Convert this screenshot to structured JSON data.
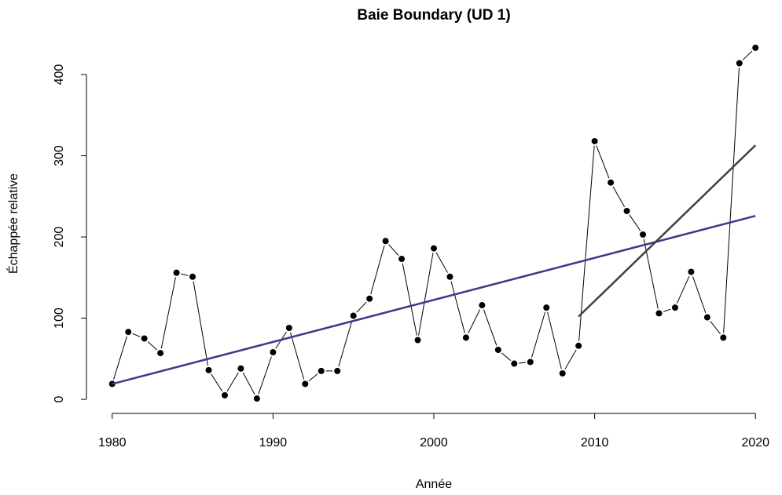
{
  "chart_data": {
    "type": "line",
    "title": "Baie Boundary (UD 1)",
    "x_label": "Année",
    "y_label": "Échappée relative",
    "xlim": [
      1978.4,
      2021.6
    ],
    "ylim": [
      -17.3,
      450.3
    ],
    "xticks": [
      1980,
      1990,
      2000,
      2010,
      2020
    ],
    "yticks": [
      0,
      100,
      200,
      300,
      400
    ],
    "series": [
      {
        "color": "#000000",
        "markers": true,
        "x": [
          1980,
          1981,
          1982,
          1983,
          1984,
          1985,
          1986,
          1987,
          1988,
          1989,
          1990,
          1991,
          1992,
          1993,
          1994,
          1995,
          1996,
          1997,
          1998,
          1999,
          2000,
          2001,
          2002,
          2003,
          2004,
          2005,
          2006,
          2007,
          2008,
          2009,
          2010,
          2011,
          2012,
          2013,
          2014,
          2015,
          2016,
          2017,
          2018,
          2019,
          2020
        ],
        "values": [
          19,
          83,
          75,
          57,
          156,
          151,
          36,
          5,
          38,
          1,
          58,
          88,
          19,
          35,
          35,
          103,
          124,
          195,
          173,
          73,
          186,
          151,
          76,
          116,
          61,
          44,
          46,
          113,
          32,
          66,
          318,
          267,
          232,
          203,
          106,
          113,
          157,
          101,
          76,
          414,
          433
        ]
      },
      {
        "color": "#3c3a8c",
        "markers": false,
        "x": [
          1980,
          2020
        ],
        "values": [
          19,
          226
        ]
      },
      {
        "color": "#404040",
        "markers": false,
        "x": [
          2009,
          2020
        ],
        "values": [
          102,
          313
        ]
      }
    ]
  }
}
